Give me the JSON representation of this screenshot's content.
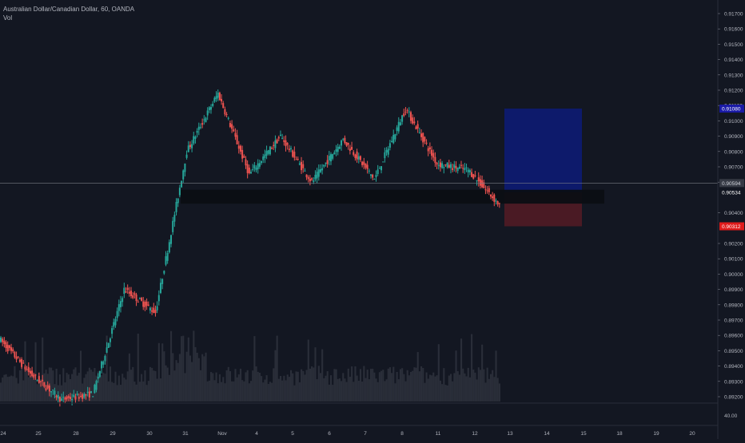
{
  "header": {
    "symbol_title": "Australian Dollar/Canadian Dollar, 60, OANDA",
    "indicator": "Vol"
  },
  "colors": {
    "background": "#131722",
    "up": "#26a69a",
    "down": "#ef5350",
    "text": "#b2b5be",
    "volume": "#2a2e39",
    "profit_zone": "#0d1a6b",
    "loss_zone": "#4a1a24",
    "support_band": "#0b0e14",
    "crosshair": "#787b86",
    "target_label": "#1a1aa6",
    "stop_label": "#e01b1b",
    "entry_label": "#131722"
  },
  "chart_data": {
    "type": "candlestick",
    "title": "Australian Dollar/Canadian Dollar, 60, OANDA",
    "xlabel": "",
    "ylabel": "",
    "ylim": [
      0.8915,
      0.9175
    ],
    "grid": false,
    "x_tick_labels": [
      "24",
      "25",
      "28",
      "29",
      "30",
      "31",
      "Nov",
      "4",
      "5",
      "6",
      "7",
      "8",
      "11",
      "12",
      "13",
      "14",
      "15",
      "18",
      "19",
      "20"
    ],
    "y_tick_labels": [
      "0.91700",
      "0.91600",
      "0.91500",
      "0.91400",
      "0.91300",
      "0.91200",
      "0.91100",
      "0.91000",
      "0.90900",
      "0.90800",
      "0.90700",
      "0.90600",
      "0.90400",
      "0.90200",
      "0.90100",
      "0.90000",
      "0.89900",
      "0.89800",
      "0.89700",
      "0.89600",
      "0.89500",
      "0.89400",
      "0.89300",
      "0.89200"
    ],
    "volume_axis_label": "40.00",
    "price_labels": {
      "target": "0.91080",
      "current": "0.90594",
      "entry": "0.90534",
      "stop": "0.90312"
    },
    "position": {
      "target": 0.9108,
      "entry": 0.90534,
      "stop": 0.90312
    },
    "current_price": 0.90594,
    "support_zone": [
      0.9046,
      0.9054
    ],
    "segments": [
      {
        "day": "24",
        "start": 0.8958,
        "end": 0.8935,
        "trend": "down"
      },
      {
        "day": "25",
        "start": 0.8935,
        "end": 0.8918,
        "trend": "down"
      },
      {
        "day": "28",
        "start": 0.8918,
        "end": 0.8922,
        "trend": "flat"
      },
      {
        "day": "29",
        "start": 0.8922,
        "end": 0.899,
        "trend": "up"
      },
      {
        "day": "30",
        "start": 0.899,
        "end": 0.8975,
        "trend": "flat"
      },
      {
        "day": "30",
        "start": 0.8975,
        "end": 0.908,
        "trend": "up"
      },
      {
        "day": "31",
        "start": 0.908,
        "end": 0.9118,
        "trend": "up"
      },
      {
        "day": "31",
        "start": 0.9118,
        "end": 0.9065,
        "trend": "down"
      },
      {
        "day": "Nov",
        "start": 0.9065,
        "end": 0.909,
        "trend": "up"
      },
      {
        "day": "4",
        "start": 0.909,
        "end": 0.906,
        "trend": "down"
      },
      {
        "day": "5",
        "start": 0.906,
        "end": 0.9088,
        "trend": "up"
      },
      {
        "day": "6",
        "start": 0.9088,
        "end": 0.9062,
        "trend": "down"
      },
      {
        "day": "7",
        "start": 0.9062,
        "end": 0.9108,
        "trend": "up"
      },
      {
        "day": "8",
        "start": 0.9108,
        "end": 0.9072,
        "trend": "down"
      },
      {
        "day": "11",
        "start": 0.9072,
        "end": 0.9068,
        "trend": "flat"
      },
      {
        "day": "12",
        "start": 0.9068,
        "end": 0.9045,
        "trend": "down"
      }
    ]
  }
}
